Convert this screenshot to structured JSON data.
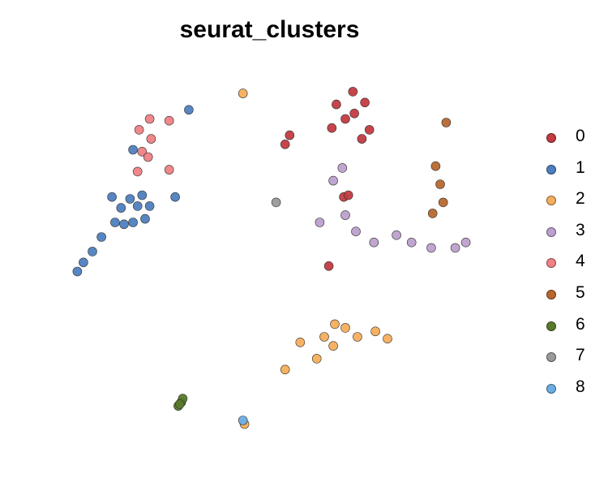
{
  "chart_data": {
    "type": "scatter",
    "title": "seurat_clusters",
    "xlabel": "",
    "ylabel": "",
    "axes_visible": false,
    "grid": false,
    "legend_position": "right",
    "point_outline": "#333333",
    "series": [
      {
        "name": "0",
        "color": "#C23B41",
        "points": [
          [
            2.9,
            9.3
          ],
          [
            7.4,
            12.2
          ],
          [
            8.2,
            11.6
          ],
          [
            6.9,
            10.7
          ],
          [
            8.5,
            10.1
          ],
          [
            6.0,
            10.2
          ],
          [
            8.0,
            9.6
          ],
          [
            3.2,
            9.8
          ],
          [
            7.5,
            11.0
          ],
          [
            6.3,
            11.5
          ],
          [
            6.8,
            6.4
          ],
          [
            7.1,
            6.5
          ],
          [
            5.8,
            2.6
          ]
        ]
      },
      {
        "name": "1",
        "color": "#4E7FBF",
        "points": [
          [
            -8.6,
            6.4
          ],
          [
            -8.0,
            5.8
          ],
          [
            -7.4,
            6.3
          ],
          [
            -6.9,
            5.9
          ],
          [
            -6.6,
            6.5
          ],
          [
            -6.1,
            5.9
          ],
          [
            -8.4,
            5.0
          ],
          [
            -7.8,
            4.9
          ],
          [
            -7.2,
            5.0
          ],
          [
            -6.4,
            5.2
          ],
          [
            -9.3,
            4.2
          ],
          [
            -9.9,
            3.4
          ],
          [
            -10.5,
            2.8
          ],
          [
            -10.9,
            2.3
          ],
          [
            -4.4,
            6.4
          ],
          [
            -3.5,
            11.2
          ],
          [
            -7.2,
            9.0
          ]
        ]
      },
      {
        "name": "2",
        "color": "#F5AE5B",
        "points": [
          [
            5.5,
            -1.3
          ],
          [
            6.2,
            -0.6
          ],
          [
            6.9,
            -0.8
          ],
          [
            7.7,
            -1.3
          ],
          [
            8.9,
            -1.0
          ],
          [
            9.7,
            -1.4
          ],
          [
            5.0,
            -2.5
          ],
          [
            6.1,
            -1.8
          ],
          [
            2.9,
            -3.1
          ],
          [
            3.9,
            -1.6
          ],
          [
            0.1,
            12.1
          ],
          [
            0.2,
            -6.1
          ]
        ]
      },
      {
        "name": "3",
        "color": "#BDA0CE",
        "points": [
          [
            6.7,
            8.0
          ],
          [
            6.1,
            7.3
          ],
          [
            6.9,
            5.4
          ],
          [
            7.6,
            4.5
          ],
          [
            8.8,
            3.9
          ],
          [
            10.3,
            4.3
          ],
          [
            11.3,
            3.9
          ],
          [
            12.6,
            3.6
          ],
          [
            14.2,
            3.6
          ],
          [
            14.9,
            3.9
          ],
          [
            5.2,
            5.0
          ]
        ]
      },
      {
        "name": "4",
        "color": "#F08184",
        "points": [
          [
            -6.9,
            7.8
          ],
          [
            -6.6,
            8.9
          ],
          [
            -6.8,
            10.1
          ],
          [
            -6.1,
            10.7
          ],
          [
            -4.8,
            10.6
          ],
          [
            -6.0,
            9.6
          ],
          [
            -6.2,
            8.6
          ],
          [
            -4.8,
            7.9
          ]
        ]
      },
      {
        "name": "5",
        "color": "#B8682E",
        "points": [
          [
            13.6,
            10.5
          ],
          [
            12.9,
            8.1
          ],
          [
            13.2,
            7.1
          ],
          [
            13.4,
            6.1
          ],
          [
            12.7,
            5.5
          ]
        ]
      },
      {
        "name": "6",
        "color": "#597A2B",
        "points": [
          [
            -4.2,
            -5.1
          ],
          [
            -4.0,
            -4.9
          ],
          [
            -3.9,
            -4.7
          ],
          [
            -4.1,
            -5.0
          ]
        ]
      },
      {
        "name": "7",
        "color": "#9A9A9A",
        "points": [
          [
            2.3,
            6.1
          ]
        ]
      },
      {
        "name": "8",
        "color": "#6BAEE5",
        "points": [
          [
            0.1,
            -5.9
          ]
        ]
      }
    ],
    "xlim": [
      -12,
      16
    ],
    "ylim": [
      -8,
      13
    ]
  }
}
